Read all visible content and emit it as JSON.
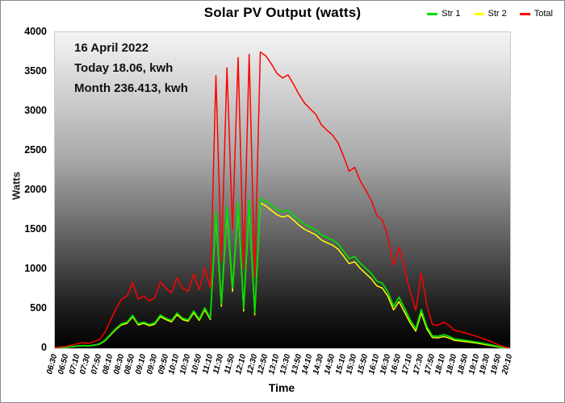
{
  "title": "Solar PV Output (watts)",
  "legend": {
    "items": [
      {
        "label": "Str 1",
        "color": "#00dd00"
      },
      {
        "label": "Str 2",
        "color": "#ffff00"
      },
      {
        "label": "Total",
        "color": "#ff0000"
      }
    ]
  },
  "annotation": {
    "lines": [
      "16 April 2022",
      "Today 18.06, kwh",
      "Month 236.413, kwh"
    ]
  },
  "axes": {
    "y_title": "Watts",
    "x_title": "Time"
  },
  "chart_data": {
    "type": "line",
    "title": "Solar PV Output (watts)",
    "xlabel": "Time",
    "ylabel": "Watts",
    "ylim": [
      0,
      4000
    ],
    "grid": false,
    "legend_position": "top-right",
    "plot_background": "vertical gradient, light gray at top to black at bottom",
    "y_ticks": [
      0,
      500,
      1000,
      1500,
      2000,
      2500,
      3000,
      3500,
      4000
    ],
    "x_ticks": [
      "06:30",
      "06:50",
      "07:10",
      "07:30",
      "07:50",
      "08:10",
      "08:30",
      "08:50",
      "09:10",
      "09:30",
      "09:50",
      "10:10",
      "10:30",
      "10:50",
      "11:10",
      "11:30",
      "11:50",
      "12:10",
      "12:30",
      "12:50",
      "13:10",
      "13:30",
      "13:50",
      "14:10",
      "14:30",
      "14:50",
      "15:10",
      "15:30",
      "15:50",
      "16:10",
      "16:30",
      "16:50",
      "17:10",
      "17:30",
      "17:50",
      "18:10",
      "18:30",
      "18:50",
      "19:10",
      "19:30",
      "19:50",
      "20:10"
    ],
    "x": [
      "06:30",
      "06:40",
      "06:50",
      "07:00",
      "07:10",
      "07:20",
      "07:30",
      "07:40",
      "07:50",
      "08:00",
      "08:10",
      "08:20",
      "08:30",
      "08:40",
      "08:50",
      "09:00",
      "09:10",
      "09:20",
      "09:30",
      "09:40",
      "09:50",
      "10:00",
      "10:10",
      "10:20",
      "10:30",
      "10:40",
      "10:50",
      "11:00",
      "11:10",
      "11:20",
      "11:30",
      "11:40",
      "11:50",
      "12:00",
      "12:10",
      "12:20",
      "12:30",
      "12:40",
      "12:50",
      "13:00",
      "13:10",
      "13:20",
      "13:30",
      "13:40",
      "13:50",
      "14:00",
      "14:10",
      "14:20",
      "14:30",
      "14:40",
      "14:50",
      "15:00",
      "15:10",
      "15:20",
      "15:30",
      "15:40",
      "15:50",
      "16:00",
      "16:10",
      "16:20",
      "16:30",
      "16:40",
      "16:50",
      "17:00",
      "17:10",
      "17:20",
      "17:30",
      "17:40",
      "17:50",
      "18:00",
      "18:10",
      "18:20",
      "18:30",
      "18:40",
      "18:50",
      "19:00",
      "19:10",
      "19:20",
      "19:30",
      "19:40",
      "19:50",
      "20:00",
      "20:10"
    ],
    "draw_order": [
      1,
      0,
      2
    ],
    "series": [
      {
        "name": "Str 1",
        "color": "#00dd00",
        "width": 1.8,
        "values": [
          4,
          7,
          11,
          19,
          28,
          35,
          31,
          40,
          55,
          100,
          175,
          250,
          310,
          330,
          415,
          310,
          330,
          300,
          320,
          420,
          380,
          350,
          445,
          380,
          360,
          470,
          370,
          510,
          380,
          1730,
          560,
          1790,
          760,
          1850,
          500,
          1870,
          450,
          1890,
          1860,
          1810,
          1755,
          1725,
          1745,
          1685,
          1620,
          1570,
          1535,
          1500,
          1435,
          1400,
          1370,
          1320,
          1230,
          1135,
          1160,
          1075,
          1010,
          945,
          850,
          820,
          710,
          530,
          645,
          505,
          360,
          245,
          490,
          275,
          155,
          150,
          170,
          150,
          115,
          108,
          98,
          88,
          77,
          64,
          51,
          36,
          20,
          7,
          2
        ]
      },
      {
        "name": "Str 2",
        "color": "#ffff00",
        "width": 1.5,
        "values": [
          3,
          6,
          10,
          17,
          25,
          32,
          28,
          36,
          50,
          92,
          165,
          238,
          295,
          315,
          398,
          295,
          315,
          285,
          305,
          400,
          362,
          333,
          425,
          362,
          342,
          448,
          352,
          487,
          362,
          1680,
          530,
          1740,
          720,
          1800,
          470,
          1820,
          420,
          1840,
          1800,
          1745,
          1690,
          1660,
          1680,
          1620,
          1555,
          1505,
          1470,
          1435,
          1370,
          1335,
          1305,
          1255,
          1165,
          1070,
          1095,
          1010,
          945,
          880,
          790,
          760,
          655,
          485,
          590,
          455,
          320,
          215,
          445,
          245,
          135,
          130,
          148,
          130,
          98,
          92,
          83,
          74,
          64,
          52,
          40,
          27,
          14,
          4,
          1
        ]
      },
      {
        "name": "Total",
        "color": "#ff0000",
        "width": 1.5,
        "values": [
          8,
          14,
          22,
          38,
          55,
          70,
          62,
          80,
          110,
          200,
          350,
          500,
          620,
          660,
          830,
          620,
          660,
          600,
          640,
          840,
          760,
          700,
          890,
          760,
          720,
          940,
          740,
          1020,
          760,
          3450,
          1100,
          3550,
          1500,
          3680,
          1000,
          3720,
          900,
          3750,
          3700,
          3600,
          3480,
          3420,
          3460,
          3340,
          3210,
          3100,
          3030,
          2960,
          2830,
          2760,
          2700,
          2600,
          2430,
          2240,
          2290,
          2120,
          2000,
          1870,
          1680,
          1620,
          1400,
          1050,
          1280,
          1000,
          715,
          480,
          950,
          545,
          300,
          290,
          330,
          290,
          225,
          210,
          190,
          170,
          150,
          125,
          100,
          70,
          40,
          15,
          4
        ]
      }
    ]
  }
}
